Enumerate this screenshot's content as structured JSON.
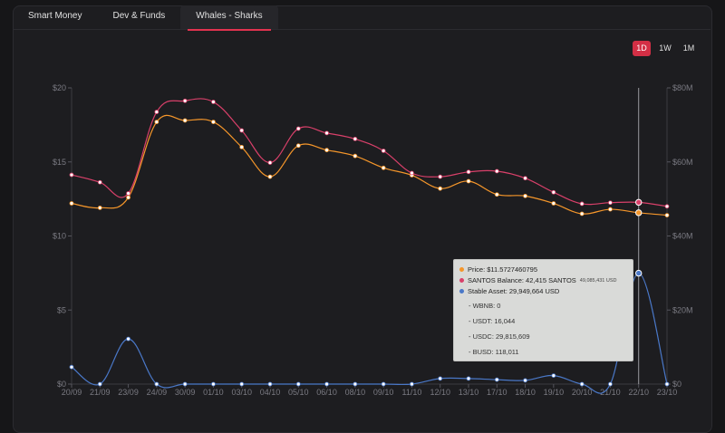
{
  "tabs": [
    {
      "label": "Smart Money"
    },
    {
      "label": "Dev & Funds"
    },
    {
      "label": "Whales - Sharks"
    }
  ],
  "ranges": [
    "1D",
    "1W",
    "1M"
  ],
  "tooltip": {
    "price": "Price: $11.5727460795",
    "balance": "SANTOS Balance: 42,415 SANTOS",
    "balance_usd": "49,085,431 USD",
    "stable": "Stable Asset: 29,949,664 USD",
    "wbnb": "- WBNB: 0",
    "usdt": "- USDT: 16,044",
    "usdc": "- USDC: 29,815,609",
    "busd": "- BUSD: 118,011"
  },
  "colors": {
    "price": "#f5962a",
    "balance": "#d9406a",
    "stable": "#4a78c8",
    "active": "#d32f45"
  },
  "chart_data": {
    "type": "line",
    "x": [
      "20/09",
      "21/09",
      "23/09",
      "24/09",
      "30/09",
      "01/10",
      "03/10",
      "04/10",
      "05/10",
      "06/10",
      "08/10",
      "09/10",
      "11/10",
      "12/10",
      "13/10",
      "17/10",
      "18/10",
      "19/10",
      "20/10",
      "21/10",
      "22/10",
      "23/10"
    ],
    "left_axis": {
      "ticks": [
        "$0",
        "$5",
        "$10",
        "$15",
        "$20"
      ],
      "range": [
        0,
        20
      ]
    },
    "right_axis": {
      "ticks": [
        "$0",
        "$20M",
        "$40M",
        "$60M",
        "$80M"
      ],
      "range": [
        0,
        80
      ]
    },
    "series": [
      {
        "name": "Price",
        "axis": "left",
        "values": [
          12.2,
          11.9,
          12.6,
          17.7,
          17.8,
          17.7,
          16.0,
          14.0,
          16.1,
          15.8,
          15.4,
          14.6,
          14.1,
          13.2,
          13.7,
          12.8,
          12.7,
          12.2,
          11.5,
          11.8,
          11.57,
          11.4
        ]
      },
      {
        "name": "SANTOS Balance",
        "axis": "right",
        "values": [
          56.5,
          54.5,
          51.5,
          73.5,
          76.5,
          76.2,
          68.5,
          59.8,
          69.0,
          67.8,
          66.2,
          63.0,
          57.0,
          56.0,
          57.3,
          57.5,
          55.6,
          51.8,
          48.7,
          49.0,
          49.09,
          48.0
        ]
      },
      {
        "name": "Stable Asset",
        "axis": "right",
        "values": [
          4.6,
          0,
          12.2,
          0,
          0,
          0,
          0,
          0,
          0,
          0,
          0,
          0,
          0,
          1.5,
          1.5,
          1.2,
          1.0,
          2.3,
          0,
          0,
          29.95,
          0
        ]
      }
    ],
    "crosshair_at": "22/10"
  }
}
